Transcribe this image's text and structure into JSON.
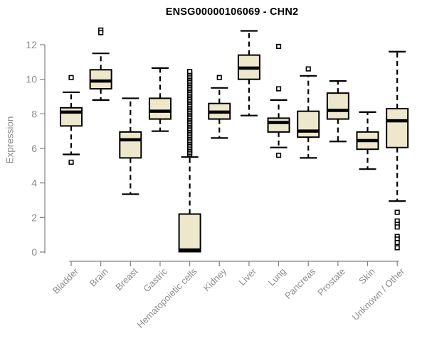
{
  "chart_data": {
    "type": "boxplot",
    "title": "ENSG00000106069 - CHN2",
    "ylabel": "Expression",
    "xlabel": "",
    "ylim": [
      0,
      13
    ],
    "yticks": [
      0,
      2,
      4,
      6,
      8,
      10,
      12
    ],
    "grid": false,
    "legend_position": "none",
    "colors": {
      "box_fill": "#ede8cc",
      "box_stroke": "#000000",
      "median": "#000000",
      "whisker": "#000000",
      "axis_line": "#808080",
      "tick_text": "#8c8c8c",
      "title_text": "#000000",
      "outlier_fill": "#ffffff",
      "outlier_stroke": "#000000"
    },
    "categories": [
      "Bladder",
      "Brain",
      "Breast",
      "Gastric",
      "Hematopoietic cells",
      "Kidney",
      "Liver",
      "Lung",
      "Pancreas",
      "Prostate",
      "Skin",
      "Unknown / Other"
    ],
    "series": [
      {
        "name": "Bladder",
        "whisker_low": 5.65,
        "q1": 7.3,
        "median": 8.1,
        "q3": 8.35,
        "whisker_high": 9.25,
        "outliers": [
          10.1,
          5.2
        ]
      },
      {
        "name": "Brain",
        "whisker_low": 8.8,
        "q1": 9.45,
        "median": 9.9,
        "q3": 10.55,
        "whisker_high": 11.5,
        "outliers": [
          12.85,
          12.7
        ]
      },
      {
        "name": "Breast",
        "whisker_low": 3.35,
        "q1": 5.45,
        "median": 6.5,
        "q3": 6.95,
        "whisker_high": 8.9,
        "outliers": []
      },
      {
        "name": "Gastric",
        "whisker_low": 7.0,
        "q1": 7.7,
        "median": 8.15,
        "q3": 8.9,
        "whisker_high": 10.65,
        "outliers": []
      },
      {
        "name": "Hematopoietic cells",
        "whisker_low": null,
        "q1": 0.02,
        "median": 0.12,
        "q3": 2.2,
        "whisker_high": 5.5,
        "outliers": [
          5.65,
          5.75,
          5.85,
          5.95,
          6.05,
          6.15,
          6.25,
          6.35,
          6.45,
          6.55,
          6.65,
          6.75,
          6.85,
          6.95,
          7.05,
          7.15,
          7.25,
          7.35,
          7.45,
          7.55,
          7.65,
          7.75,
          7.85,
          7.95,
          8.05,
          8.15,
          8.25,
          8.35,
          8.45,
          8.55,
          8.65,
          8.75,
          8.85,
          8.95,
          9.05,
          9.15,
          9.25,
          9.35,
          9.45,
          9.55,
          9.65,
          9.75,
          9.85,
          9.95,
          10.05,
          10.15,
          10.25,
          10.35,
          10.45
        ]
      },
      {
        "name": "Kidney",
        "whisker_low": 6.6,
        "q1": 7.7,
        "median": 8.1,
        "q3": 8.6,
        "whisker_high": 9.5,
        "outliers": [
          10.1
        ]
      },
      {
        "name": "Liver",
        "whisker_low": 7.9,
        "q1": 10.0,
        "median": 10.65,
        "q3": 11.4,
        "whisker_high": 12.8,
        "outliers": []
      },
      {
        "name": "Lung",
        "whisker_low": 6.05,
        "q1": 6.95,
        "median": 7.5,
        "q3": 7.75,
        "whisker_high": 8.8,
        "outliers": [
          11.9,
          9.45,
          5.6
        ]
      },
      {
        "name": "Pancreas",
        "whisker_low": 5.45,
        "q1": 6.65,
        "median": 7.0,
        "q3": 8.15,
        "whisker_high": 10.2,
        "outliers": [
          10.6
        ]
      },
      {
        "name": "Prostate",
        "whisker_low": 6.4,
        "q1": 7.7,
        "median": 8.2,
        "q3": 9.2,
        "whisker_high": 9.9,
        "outliers": []
      },
      {
        "name": "Skin",
        "whisker_low": 4.8,
        "q1": 5.95,
        "median": 6.45,
        "q3": 6.95,
        "whisker_high": 8.1,
        "outliers": []
      },
      {
        "name": "Unknown / Other",
        "whisker_low": 2.95,
        "q1": 6.05,
        "median": 7.6,
        "q3": 8.3,
        "whisker_high": 11.6,
        "outliers": [
          2.3,
          1.8,
          1.6,
          1.45,
          0.9,
          0.75,
          0.55,
          0.25
        ]
      }
    ]
  }
}
